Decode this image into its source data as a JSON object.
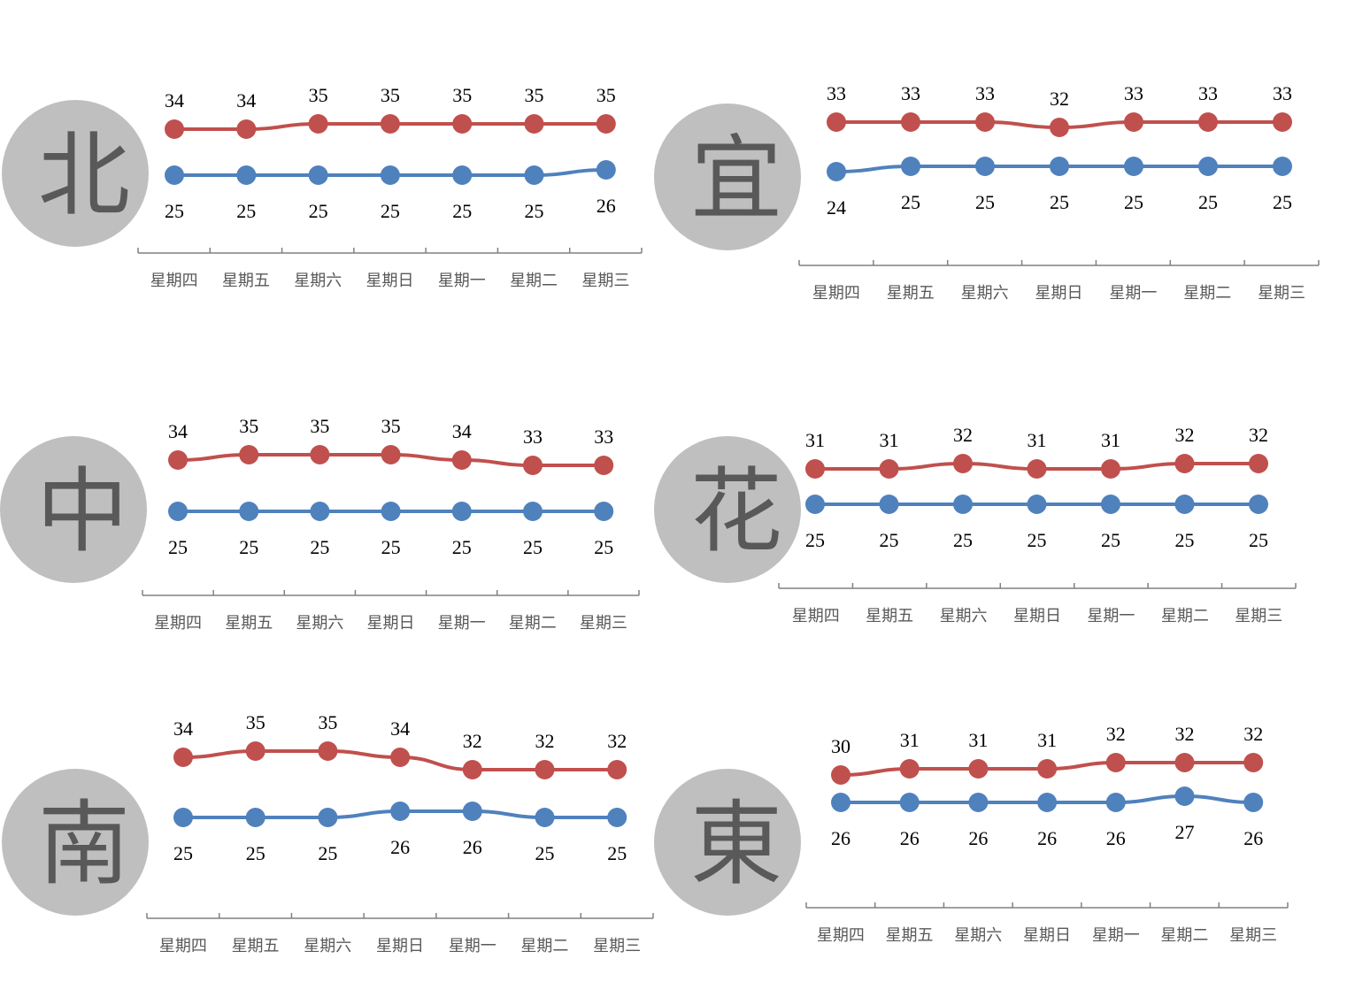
{
  "colors": {
    "high": "#c0504d",
    "low": "#4f81bd",
    "circle": "#bfbfbf",
    "city_text": "#595959"
  },
  "chart_data": [
    {
      "type": "line",
      "city": "北",
      "categories": [
        "星期四",
        "星期五",
        "星期六",
        "星期日",
        "星期一",
        "星期二",
        "星期三"
      ],
      "series": [
        {
          "values": [
            34,
            34,
            35,
            35,
            35,
            35,
            35
          ]
        },
        {
          "values": [
            25,
            25,
            25,
            25,
            25,
            25,
            26
          ]
        }
      ]
    },
    {
      "type": "line",
      "city": "宜",
      "categories": [
        "星期四",
        "星期五",
        "星期六",
        "星期日",
        "星期一",
        "星期二",
        "星期三"
      ],
      "series": [
        {
          "values": [
            33,
            33,
            33,
            32,
            33,
            33,
            33
          ]
        },
        {
          "values": [
            24,
            25,
            25,
            25,
            25,
            25,
            25
          ]
        }
      ]
    },
    {
      "type": "line",
      "city": "中",
      "categories": [
        "星期四",
        "星期五",
        "星期六",
        "星期日",
        "星期一",
        "星期二",
        "星期三"
      ],
      "series": [
        {
          "values": [
            34,
            35,
            35,
            35,
            34,
            33,
            33
          ]
        },
        {
          "values": [
            25,
            25,
            25,
            25,
            25,
            25,
            25
          ]
        }
      ]
    },
    {
      "type": "line",
      "city": "花",
      "categories": [
        "星期四",
        "星期五",
        "星期六",
        "星期日",
        "星期一",
        "星期二",
        "星期三"
      ],
      "series": [
        {
          "values": [
            31,
            31,
            32,
            31,
            31,
            32,
            32
          ]
        },
        {
          "values": [
            25,
            25,
            25,
            25,
            25,
            25,
            25
          ]
        }
      ]
    },
    {
      "type": "line",
      "city": "南",
      "categories": [
        "星期四",
        "星期五",
        "星期六",
        "星期日",
        "星期一",
        "星期二",
        "星期三"
      ],
      "series": [
        {
          "values": [
            34,
            35,
            35,
            34,
            32,
            32,
            32
          ]
        },
        {
          "values": [
            25,
            25,
            25,
            26,
            26,
            25,
            25
          ]
        }
      ]
    },
    {
      "type": "line",
      "city": "東",
      "categories": [
        "星期四",
        "星期五",
        "星期六",
        "星期日",
        "星期一",
        "星期二",
        "星期三"
      ],
      "series": [
        {
          "values": [
            30,
            31,
            31,
            31,
            32,
            32,
            32
          ]
        },
        {
          "values": [
            26,
            26,
            26,
            26,
            26,
            27,
            26
          ]
        }
      ]
    }
  ]
}
